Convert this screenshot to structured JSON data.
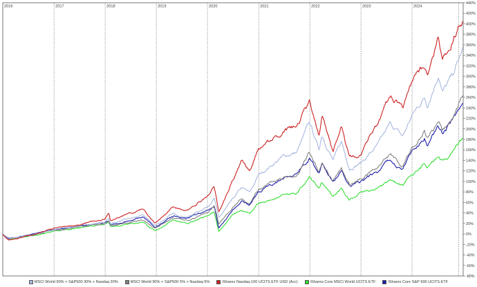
{
  "chart_data": {
    "type": "line",
    "title": "",
    "xlabel": "",
    "ylabel": "",
    "x_range": [
      "2016-01-01",
      "2024-12-31"
    ],
    "year_labels": [
      "2016",
      "2017",
      "2018",
      "2019",
      "2020",
      "2021",
      "2022",
      "2023",
      "2024"
    ],
    "ylim": [
      -80,
      440
    ],
    "y_ticks": [
      -80,
      -60,
      -40,
      -20,
      0,
      20,
      40,
      60,
      80,
      100,
      120,
      140,
      160,
      180,
      200,
      220,
      240,
      260,
      280,
      300,
      320,
      340,
      360,
      380,
      400,
      420,
      440
    ],
    "y_tick_labels": [
      "-80%",
      "-60%",
      "-40%",
      "-20%",
      "0%",
      "20%",
      "40%",
      "60%",
      "80%",
      "100%",
      "120%",
      "140%",
      "160%",
      "180%",
      "200%",
      "220%",
      "240%",
      "260%",
      "280%",
      "300%",
      "320%",
      "340%",
      "360%",
      "380%",
      "400%",
      "420%",
      "440%"
    ],
    "y_axis_position": "right",
    "grid": {
      "vertical_year_lines": true,
      "horizontal": false
    },
    "legend_position": "bottom",
    "series": [
      {
        "name": "MSCI World 50% + S&P500 30% + Nasdaq 20%",
        "color": "#a9b8e0",
        "values": [
          [
            "2016-01-01",
            0
          ],
          [
            "2016-02-11",
            -10
          ],
          [
            "2016-06-30",
            -3
          ],
          [
            "2016-12-31",
            8
          ],
          [
            "2017-06-30",
            16
          ],
          [
            "2017-12-31",
            22
          ],
          [
            "2018-01-26",
            30
          ],
          [
            "2018-02-09",
            20
          ],
          [
            "2018-09-30",
            35
          ],
          [
            "2018-12-24",
            16
          ],
          [
            "2019-04-30",
            38
          ],
          [
            "2019-08-15",
            32
          ],
          [
            "2019-12-31",
            52
          ],
          [
            "2020-02-19",
            68
          ],
          [
            "2020-03-23",
            30
          ],
          [
            "2020-06-30",
            65
          ],
          [
            "2020-09-02",
            88
          ],
          [
            "2020-10-30",
            78
          ],
          [
            "2020-12-31",
            112
          ],
          [
            "2021-06-30",
            148
          ],
          [
            "2021-09-30",
            155
          ],
          [
            "2021-12-31",
            212
          ],
          [
            "2022-03-08",
            160
          ],
          [
            "2022-03-29",
            190
          ],
          [
            "2022-06-16",
            140
          ],
          [
            "2022-08-16",
            175
          ],
          [
            "2022-10-12",
            125
          ],
          [
            "2022-12-31",
            135
          ],
          [
            "2023-04-30",
            168
          ],
          [
            "2023-07-31",
            210
          ],
          [
            "2023-10-27",
            185
          ],
          [
            "2023-12-31",
            225
          ],
          [
            "2024-03-31",
            260
          ],
          [
            "2024-04-19",
            245
          ],
          [
            "2024-07-10",
            305
          ],
          [
            "2024-08-05",
            270
          ],
          [
            "2024-10-15",
            300
          ],
          [
            "2024-12-31",
            352
          ]
        ]
      },
      {
        "name": "MSCI World 90% + S&P500 5% + Nasdaq 5%",
        "color": "#808080",
        "values": [
          [
            "2016-01-01",
            0
          ],
          [
            "2016-02-11",
            -10
          ],
          [
            "2016-06-30",
            -4
          ],
          [
            "2016-12-31",
            7
          ],
          [
            "2017-06-30",
            14
          ],
          [
            "2017-12-31",
            19
          ],
          [
            "2018-01-26",
            24
          ],
          [
            "2018-02-09",
            15
          ],
          [
            "2018-09-30",
            26
          ],
          [
            "2018-12-24",
            10
          ],
          [
            "2019-04-30",
            30
          ],
          [
            "2019-08-15",
            25
          ],
          [
            "2019-12-31",
            42
          ],
          [
            "2020-02-19",
            55
          ],
          [
            "2020-03-23",
            20
          ],
          [
            "2020-06-30",
            50
          ],
          [
            "2020-09-02",
            66
          ],
          [
            "2020-10-30",
            58
          ],
          [
            "2020-12-31",
            85
          ],
          [
            "2021-06-30",
            108
          ],
          [
            "2021-09-30",
            110
          ],
          [
            "2021-12-31",
            155
          ],
          [
            "2022-03-08",
            118
          ],
          [
            "2022-03-29",
            138
          ],
          [
            "2022-06-16",
            100
          ],
          [
            "2022-08-16",
            125
          ],
          [
            "2022-10-12",
            90
          ],
          [
            "2022-12-31",
            105
          ],
          [
            "2023-04-30",
            125
          ],
          [
            "2023-07-31",
            150
          ],
          [
            "2023-10-27",
            130
          ],
          [
            "2023-12-31",
            165
          ],
          [
            "2024-03-31",
            195
          ],
          [
            "2024-04-19",
            180
          ],
          [
            "2024-07-10",
            215
          ],
          [
            "2024-08-05",
            200
          ],
          [
            "2024-10-15",
            220
          ],
          [
            "2024-12-31",
            265
          ]
        ]
      },
      {
        "name": "iShares Nasdaq-100 UCITS ETF USD (Acc)",
        "color": "#cc1f1f",
        "values": [
          [
            "2016-01-01",
            0
          ],
          [
            "2016-02-11",
            -12
          ],
          [
            "2016-06-30",
            -4
          ],
          [
            "2016-12-31",
            10
          ],
          [
            "2017-06-30",
            18
          ],
          [
            "2017-12-31",
            28
          ],
          [
            "2018-01-26",
            40
          ],
          [
            "2018-02-09",
            25
          ],
          [
            "2018-09-30",
            48
          ],
          [
            "2018-12-24",
            20
          ],
          [
            "2019-04-30",
            50
          ],
          [
            "2019-08-15",
            45
          ],
          [
            "2019-12-31",
            70
          ],
          [
            "2020-02-19",
            92
          ],
          [
            "2020-03-23",
            40
          ],
          [
            "2020-06-30",
            100
          ],
          [
            "2020-09-02",
            140
          ],
          [
            "2020-10-30",
            120
          ],
          [
            "2020-12-31",
            165
          ],
          [
            "2021-06-30",
            195
          ],
          [
            "2021-09-30",
            205
          ],
          [
            "2021-12-31",
            250
          ],
          [
            "2022-03-08",
            190
          ],
          [
            "2022-03-29",
            225
          ],
          [
            "2022-06-16",
            155
          ],
          [
            "2022-08-16",
            205
          ],
          [
            "2022-10-12",
            145
          ],
          [
            "2022-12-31",
            150
          ],
          [
            "2023-04-30",
            210
          ],
          [
            "2023-07-31",
            265
          ],
          [
            "2023-10-27",
            235
          ],
          [
            "2023-12-31",
            290
          ],
          [
            "2024-03-31",
            320
          ],
          [
            "2024-04-19",
            300
          ],
          [
            "2024-07-10",
            370
          ],
          [
            "2024-08-05",
            330
          ],
          [
            "2024-10-15",
            370
          ],
          [
            "2024-12-31",
            410
          ]
        ]
      },
      {
        "name": "iShares Core MSCI World UCITS ETF",
        "color": "#33dd33",
        "values": [
          [
            "2016-01-01",
            0
          ],
          [
            "2016-02-11",
            -11
          ],
          [
            "2016-06-30",
            -5
          ],
          [
            "2016-12-31",
            5
          ],
          [
            "2017-06-30",
            12
          ],
          [
            "2017-12-31",
            18
          ],
          [
            "2018-01-26",
            22
          ],
          [
            "2018-02-09",
            14
          ],
          [
            "2018-09-30",
            22
          ],
          [
            "2018-12-24",
            6
          ],
          [
            "2019-04-30",
            25
          ],
          [
            "2019-08-15",
            20
          ],
          [
            "2019-12-31",
            35
          ],
          [
            "2020-02-19",
            42
          ],
          [
            "2020-03-23",
            4
          ],
          [
            "2020-06-30",
            35
          ],
          [
            "2020-09-02",
            45
          ],
          [
            "2020-10-30",
            38
          ],
          [
            "2020-12-31",
            58
          ],
          [
            "2021-06-30",
            75
          ],
          [
            "2021-09-30",
            78
          ],
          [
            "2021-12-31",
            108
          ],
          [
            "2022-03-08",
            85
          ],
          [
            "2022-03-29",
            98
          ],
          [
            "2022-06-16",
            70
          ],
          [
            "2022-08-16",
            88
          ],
          [
            "2022-10-12",
            65
          ],
          [
            "2022-12-31",
            78
          ],
          [
            "2023-04-30",
            88
          ],
          [
            "2023-07-31",
            102
          ],
          [
            "2023-10-27",
            92
          ],
          [
            "2023-12-31",
            112
          ],
          [
            "2024-03-31",
            132
          ],
          [
            "2024-04-19",
            125
          ],
          [
            "2024-07-10",
            150
          ],
          [
            "2024-08-05",
            138
          ],
          [
            "2024-10-15",
            155
          ],
          [
            "2024-12-31",
            185
          ]
        ]
      },
      {
        "name": "iShares Core S&P 500 UCITS ETF",
        "color": "#1a1aaa",
        "values": [
          [
            "2016-01-01",
            0
          ],
          [
            "2016-02-11",
            -9
          ],
          [
            "2016-06-30",
            -2
          ],
          [
            "2016-12-31",
            8
          ],
          [
            "2017-06-30",
            15
          ],
          [
            "2017-12-31",
            21
          ],
          [
            "2018-01-26",
            26
          ],
          [
            "2018-02-09",
            16
          ],
          [
            "2018-09-30",
            32
          ],
          [
            "2018-12-24",
            12
          ],
          [
            "2019-04-30",
            34
          ],
          [
            "2019-08-15",
            30
          ],
          [
            "2019-12-31",
            45
          ],
          [
            "2020-02-19",
            52
          ],
          [
            "2020-03-23",
            12
          ],
          [
            "2020-06-30",
            45
          ],
          [
            "2020-09-02",
            62
          ],
          [
            "2020-10-30",
            55
          ],
          [
            "2020-12-31",
            80
          ],
          [
            "2021-06-30",
            105
          ],
          [
            "2021-09-30",
            112
          ],
          [
            "2021-12-31",
            145
          ],
          [
            "2022-03-08",
            115
          ],
          [
            "2022-03-29",
            135
          ],
          [
            "2022-06-16",
            95
          ],
          [
            "2022-08-16",
            120
          ],
          [
            "2022-10-12",
            90
          ],
          [
            "2022-12-31",
            100
          ],
          [
            "2023-04-30",
            118
          ],
          [
            "2023-07-31",
            140
          ],
          [
            "2023-10-27",
            120
          ],
          [
            "2023-12-31",
            155
          ],
          [
            "2024-03-31",
            185
          ],
          [
            "2024-04-19",
            170
          ],
          [
            "2024-07-10",
            205
          ],
          [
            "2024-08-05",
            190
          ],
          [
            "2024-10-15",
            215
          ],
          [
            "2024-12-31",
            250
          ]
        ]
      }
    ]
  },
  "legend": {
    "items": [
      {
        "label": "MSCI World 50% + S&P500 30% + Nasdaq 20%",
        "color": "#a9b8e0"
      },
      {
        "label": "MSCI World 90% + S&P500 5% + Nasdaq 5%",
        "color": "#808080"
      },
      {
        "label": "iShares Nasdaq-100 UCITS ETF USD (Acc)",
        "color": "#cc1f1f"
      },
      {
        "label": "iShares Core MSCI World UCITS ETF",
        "color": "#33dd33"
      },
      {
        "label": "iShares Core S&P 500 UCITS ETF",
        "color": "#1a1aaa"
      }
    ]
  }
}
